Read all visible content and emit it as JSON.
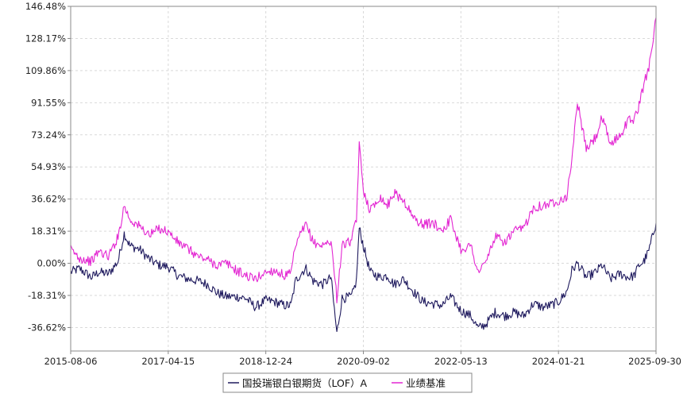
{
  "chart_data": {
    "type": "line",
    "ylim": [
      -50.0,
      146.48
    ],
    "y_ticks": [
      "146.48%",
      "128.17%",
      "109.86%",
      "91.55%",
      "73.24%",
      "54.93%",
      "36.62%",
      "18.31%",
      "0.00%",
      "-18.31%",
      "-36.62%"
    ],
    "y_tick_values": [
      146.48,
      128.17,
      109.86,
      91.55,
      73.24,
      54.93,
      36.62,
      18.31,
      0.0,
      -18.31,
      -36.62
    ],
    "x_ticks": [
      "2015-08-06",
      "2017-04-15",
      "2018-12-24",
      "2020-09-02",
      "2022-05-13",
      "2024-01-21",
      "2025-09-30"
    ],
    "xlim": [
      "2015-08-06",
      "2025-09-30"
    ],
    "grid": true,
    "legend_position": "bottom",
    "colors": {
      "fund": "#1f1a5e",
      "benchmark": "#e326d2"
    },
    "series": [
      {
        "name": "国投瑞银白银期货（LOF）A",
        "x": [
          "2015-08-06",
          "2015-10-01",
          "2015-12-15",
          "2016-02-01",
          "2016-04-01",
          "2016-06-01",
          "2016-07-10",
          "2016-08-15",
          "2016-10-15",
          "2016-12-20",
          "2017-02-15",
          "2017-04-15",
          "2017-06-15",
          "2017-08-20",
          "2017-10-20",
          "2017-12-20",
          "2018-02-20",
          "2018-04-20",
          "2018-06-20",
          "2018-08-20",
          "2018-10-20",
          "2018-12-24",
          "2019-02-20",
          "2019-04-20",
          "2019-06-01",
          "2019-07-01",
          "2019-08-10",
          "2019-09-05",
          "2019-10-20",
          "2019-12-20",
          "2020-02-10",
          "2020-03-18",
          "2020-04-20",
          "2020-06-20",
          "2020-07-20",
          "2020-08-07",
          "2020-09-02",
          "2020-10-15",
          "2020-12-15",
          "2021-02-01",
          "2021-03-15",
          "2021-05-15",
          "2021-07-15",
          "2021-09-15",
          "2021-11-15",
          "2022-01-15",
          "2022-03-08",
          "2022-05-13",
          "2022-07-15",
          "2022-08-31",
          "2022-10-15",
          "2022-12-15",
          "2023-02-15",
          "2023-04-15",
          "2023-06-15",
          "2023-08-15",
          "2023-10-15",
          "2023-12-01",
          "2024-01-21",
          "2024-03-15",
          "2024-04-15",
          "2024-05-20",
          "2024-07-15",
          "2024-09-15",
          "2024-10-22",
          "2024-12-15",
          "2025-02-15",
          "2025-04-10",
          "2025-05-15",
          "2025-06-15",
          "2025-07-15",
          "2025-08-15",
          "2025-09-30"
        ],
        "values": [
          -5,
          -3,
          -8,
          -5,
          -6,
          1,
          17,
          10,
          8,
          2,
          -1,
          -2,
          -7,
          -9,
          -10,
          -12,
          -17,
          -19,
          -19,
          -20,
          -25,
          -21,
          -22,
          -24,
          -24,
          -10,
          -5,
          -3,
          -10,
          -12,
          -8,
          -40,
          -20,
          -19,
          -10,
          20,
          10,
          -5,
          -8,
          -7,
          -12,
          -9,
          -16,
          -22,
          -23,
          -24,
          -19,
          -27,
          -30,
          -37,
          -35,
          -28,
          -30,
          -28,
          -30,
          -23,
          -25,
          -24,
          -22,
          -16,
          -4,
          0,
          -8,
          -5,
          -1,
          -9,
          -6,
          -8,
          -7,
          -1,
          1,
          7,
          23
        ]
      },
      {
        "name": "业绩基准",
        "x": [
          "2015-08-06",
          "2015-10-01",
          "2015-12-15",
          "2016-02-01",
          "2016-04-01",
          "2016-06-01",
          "2016-07-10",
          "2016-08-15",
          "2016-10-15",
          "2016-12-20",
          "2017-02-15",
          "2017-04-15",
          "2017-06-15",
          "2017-08-20",
          "2017-10-20",
          "2017-12-20",
          "2018-02-20",
          "2018-04-20",
          "2018-06-20",
          "2018-08-20",
          "2018-10-20",
          "2018-12-24",
          "2019-02-20",
          "2019-04-20",
          "2019-06-01",
          "2019-07-01",
          "2019-08-10",
          "2019-09-05",
          "2019-10-20",
          "2019-12-20",
          "2020-02-10",
          "2020-03-18",
          "2020-04-20",
          "2020-06-20",
          "2020-07-20",
          "2020-08-07",
          "2020-09-02",
          "2020-10-15",
          "2020-12-15",
          "2021-02-01",
          "2021-03-15",
          "2021-05-15",
          "2021-07-15",
          "2021-09-15",
          "2021-11-15",
          "2022-01-15",
          "2022-03-08",
          "2022-05-13",
          "2022-07-15",
          "2022-08-31",
          "2022-10-15",
          "2022-12-15",
          "2023-02-15",
          "2023-04-15",
          "2023-06-15",
          "2023-08-15",
          "2023-10-15",
          "2023-12-01",
          "2024-01-21",
          "2024-03-15",
          "2024-04-15",
          "2024-05-20",
          "2024-07-15",
          "2024-09-15",
          "2024-10-22",
          "2024-12-15",
          "2025-02-15",
          "2025-04-10",
          "2025-05-15",
          "2025-06-15",
          "2025-07-15",
          "2025-08-15",
          "2025-09-30"
        ],
        "values": [
          8,
          3,
          1,
          7,
          4,
          15,
          33,
          25,
          21,
          16,
          20,
          18,
          12,
          8,
          4,
          2,
          -1,
          0,
          -4,
          -7,
          -9,
          -5,
          -4,
          -7,
          -6,
          10,
          18,
          22,
          12,
          10,
          13,
          -20,
          10,
          13,
          25,
          67,
          42,
          30,
          38,
          33,
          40,
          36,
          26,
          22,
          23,
          19,
          25,
          8,
          10,
          -5,
          0,
          15,
          12,
          18,
          20,
          32,
          33,
          34,
          36,
          38,
          60,
          92,
          65,
          72,
          83,
          68,
          73,
          82,
          82,
          90,
          102,
          112,
          140
        ]
      }
    ]
  }
}
